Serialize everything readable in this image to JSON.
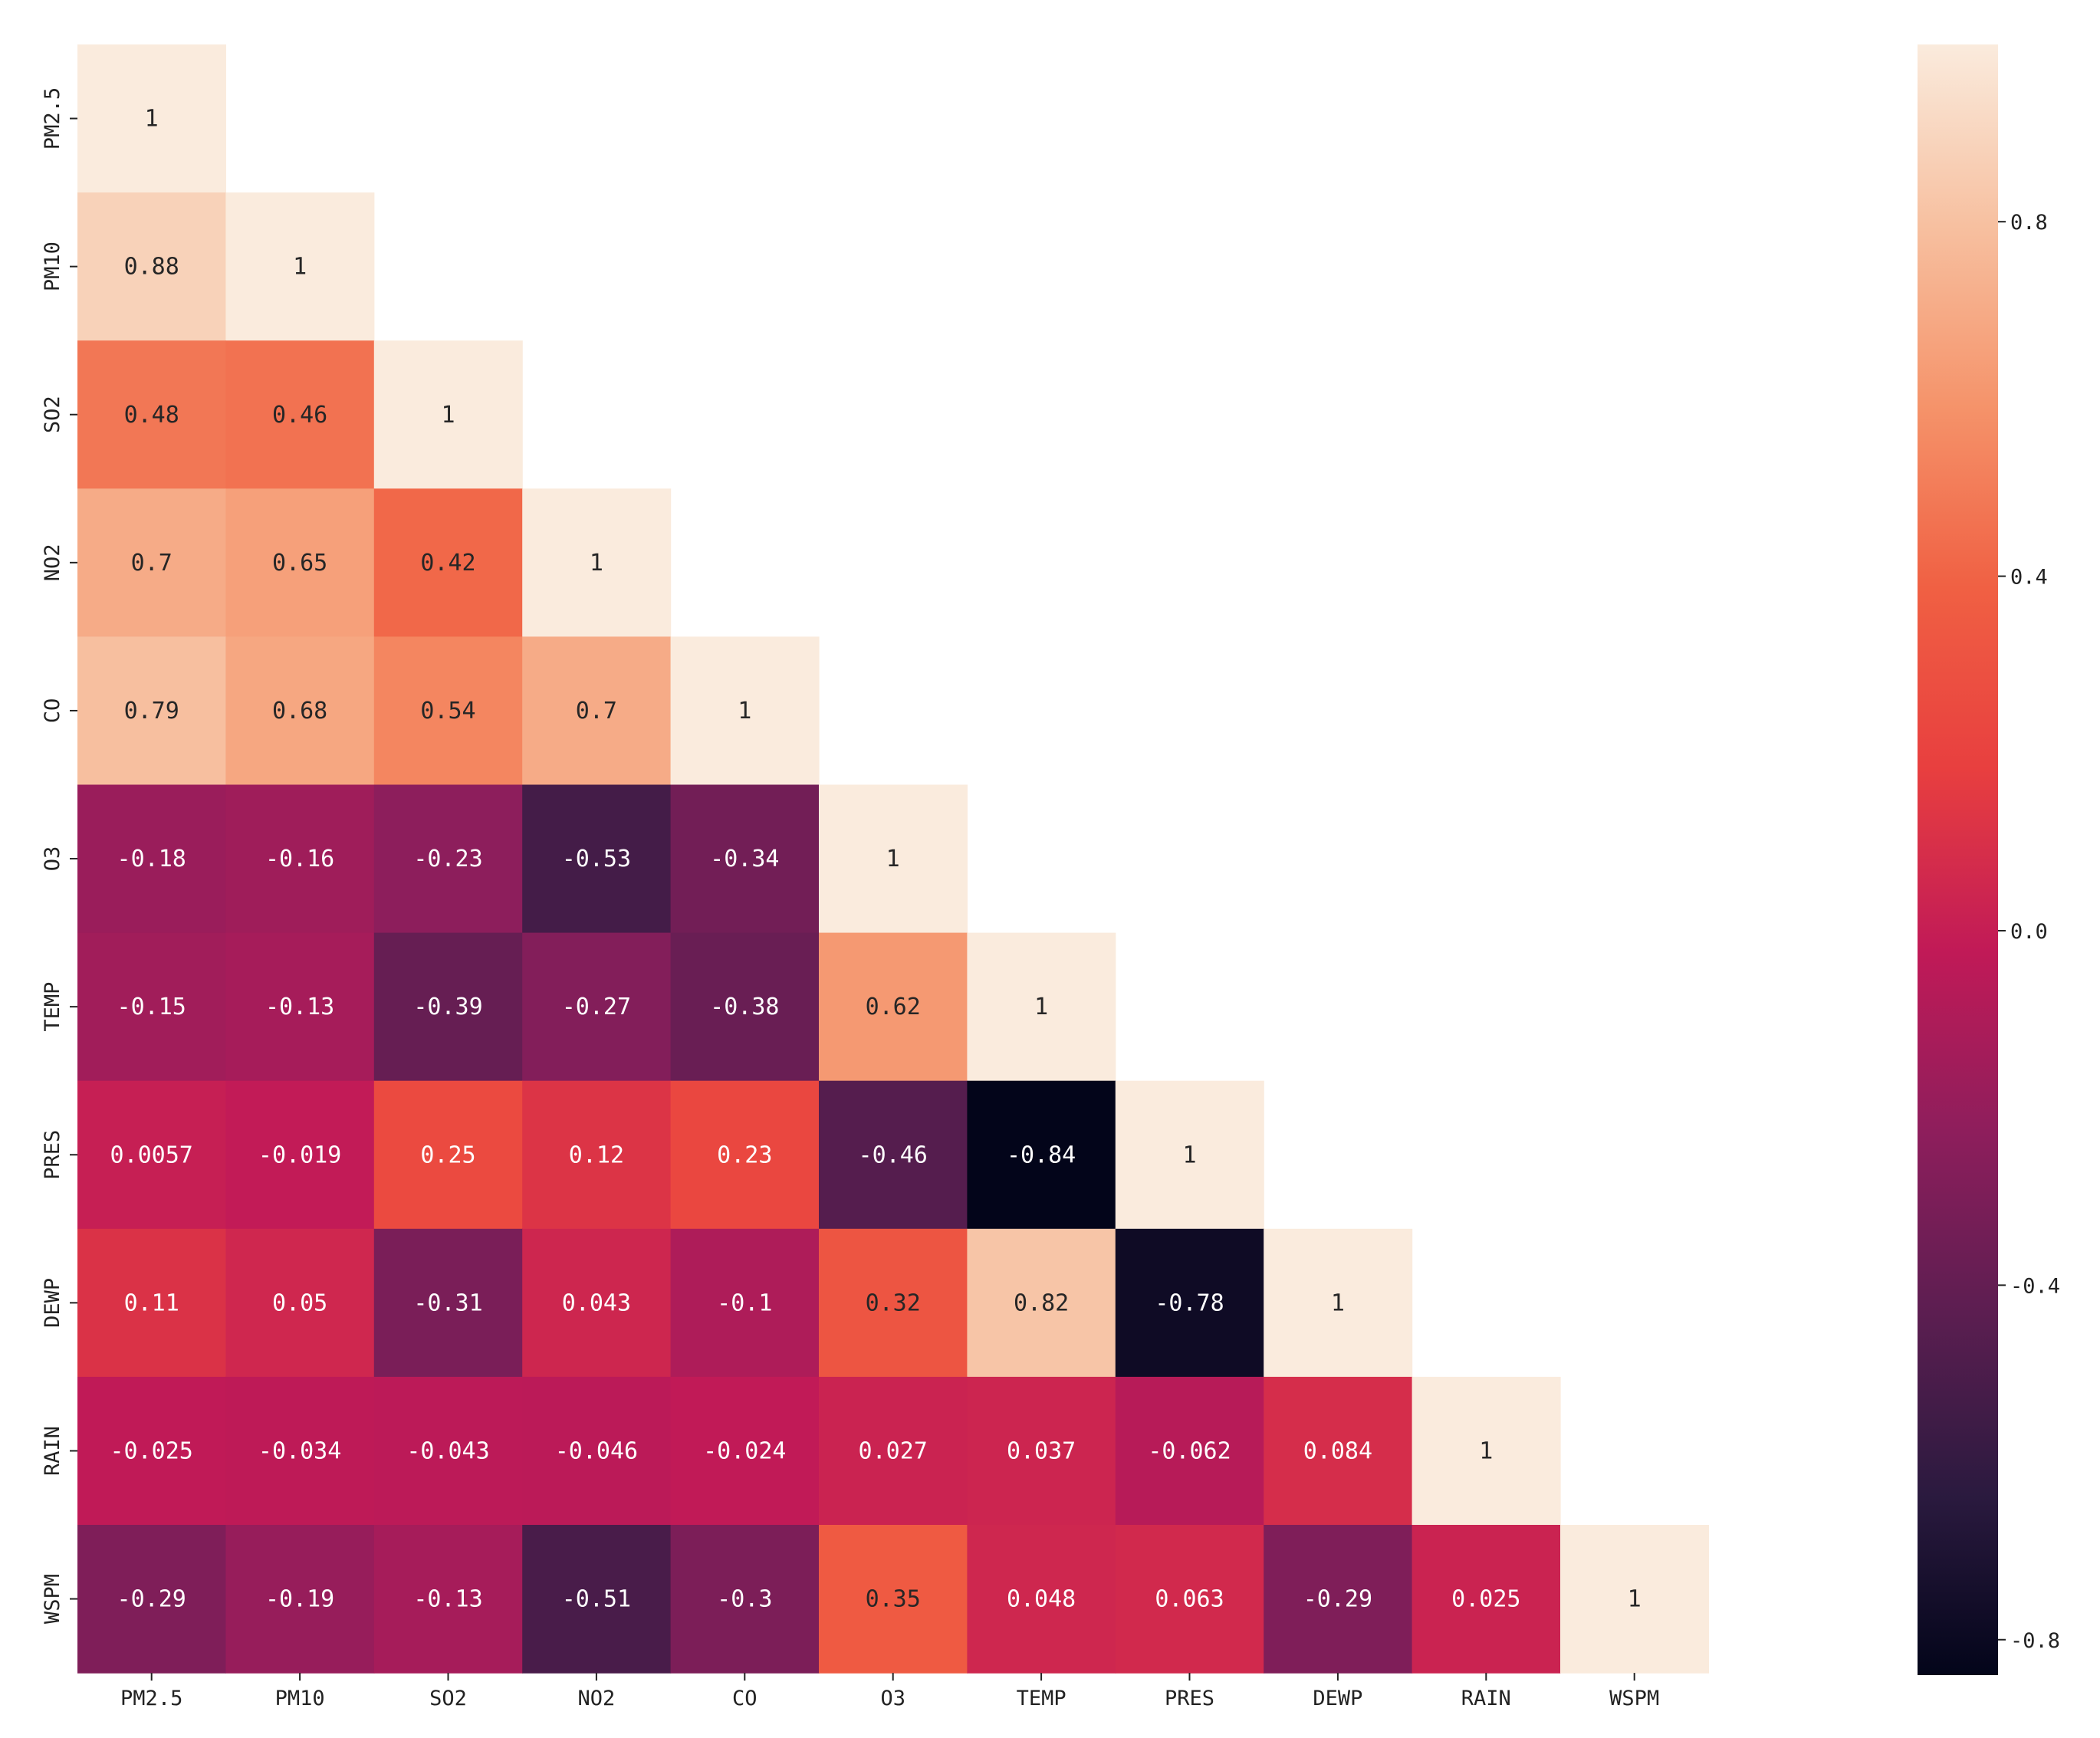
{
  "chart_data": {
    "type": "heatmap",
    "title": "",
    "xlabel": "",
    "ylabel": "",
    "mask": "upper-triangle",
    "labels": [
      "PM2.5",
      "PM10",
      "SO2",
      "NO2",
      "CO",
      "O3",
      "TEMP",
      "PRES",
      "DEWP",
      "RAIN",
      "WSPM"
    ],
    "x_tick_labels": [
      "PM2.5",
      "PM10",
      "SO2",
      "NO2",
      "CO",
      "O3",
      "TEMP",
      "PRES",
      "DEWP",
      "RAIN",
      "WSPM"
    ],
    "y_tick_labels": [
      "PM2.5",
      "PM10",
      "SO2",
      "NO2",
      "CO",
      "O3",
      "TEMP",
      "PRES",
      "DEWP",
      "RAIN",
      "WSPM"
    ],
    "values": [
      [
        1
      ],
      [
        0.88,
        1
      ],
      [
        0.48,
        0.46,
        1
      ],
      [
        0.7,
        0.65,
        0.42,
        1
      ],
      [
        0.79,
        0.68,
        0.54,
        0.7,
        1
      ],
      [
        -0.18,
        -0.16,
        -0.23,
        -0.53,
        -0.34,
        1
      ],
      [
        -0.15,
        -0.13,
        -0.39,
        -0.27,
        -0.38,
        0.62,
        1
      ],
      [
        0.0057,
        -0.019,
        0.25,
        0.12,
        0.23,
        -0.46,
        -0.84,
        1
      ],
      [
        0.11,
        0.05,
        -0.31,
        0.043,
        -0.1,
        0.32,
        0.82,
        -0.78,
        1
      ],
      [
        -0.025,
        -0.034,
        -0.043,
        -0.046,
        -0.024,
        0.027,
        0.037,
        -0.062,
        0.084,
        1
      ],
      [
        -0.29,
        -0.19,
        -0.13,
        -0.51,
        -0.3,
        0.35,
        0.048,
        0.063,
        -0.29,
        0.025,
        1
      ]
    ],
    "annotations": [
      [
        "1"
      ],
      [
        "0.88",
        "1"
      ],
      [
        "0.48",
        "0.46",
        "1"
      ],
      [
        "0.7",
        "0.65",
        "0.42",
        "1"
      ],
      [
        "0.79",
        "0.68",
        "0.54",
        "0.7",
        "1"
      ],
      [
        "-0.18",
        "-0.16",
        "-0.23",
        "-0.53",
        "-0.34",
        "1"
      ],
      [
        "-0.15",
        "-0.13",
        "-0.39",
        "-0.27",
        "-0.38",
        "0.62",
        "1"
      ],
      [
        "0.0057",
        "-0.019",
        "0.25",
        "0.12",
        "0.23",
        "-0.46",
        "-0.84",
        "1"
      ],
      [
        "0.11",
        "0.05",
        "-0.31",
        "0.043",
        "-0.1",
        "0.32",
        "0.82",
        "-0.78",
        "1"
      ],
      [
        "-0.025",
        "-0.034",
        "-0.043",
        "-0.046",
        "-0.024",
        "0.027",
        "0.037",
        "-0.062",
        "0.084",
        "1"
      ],
      [
        "-0.29",
        "-0.19",
        "-0.13",
        "-0.51",
        "-0.3",
        "0.35",
        "0.048",
        "0.063",
        "-0.29",
        "0.025",
        "1"
      ]
    ],
    "colorbar": {
      "colormap": "rocket",
      "vmin": -0.84,
      "vmax": 1,
      "ticks": [
        0.8,
        0.4,
        0.0,
        -0.4,
        -0.8
      ],
      "tick_labels": [
        "0.8",
        "0.4",
        "0.0",
        "-0.4",
        "-0.8"
      ],
      "placement": "right"
    }
  },
  "colors": {
    "rocket_stops": [
      "#03051a",
      "#2b1a3f",
      "#5c1e51",
      "#8e1e5c",
      "#c11a57",
      "#e83f3f",
      "#f06043",
      "#f5936a",
      "#f7c0a0",
      "#faebdd"
    ]
  }
}
